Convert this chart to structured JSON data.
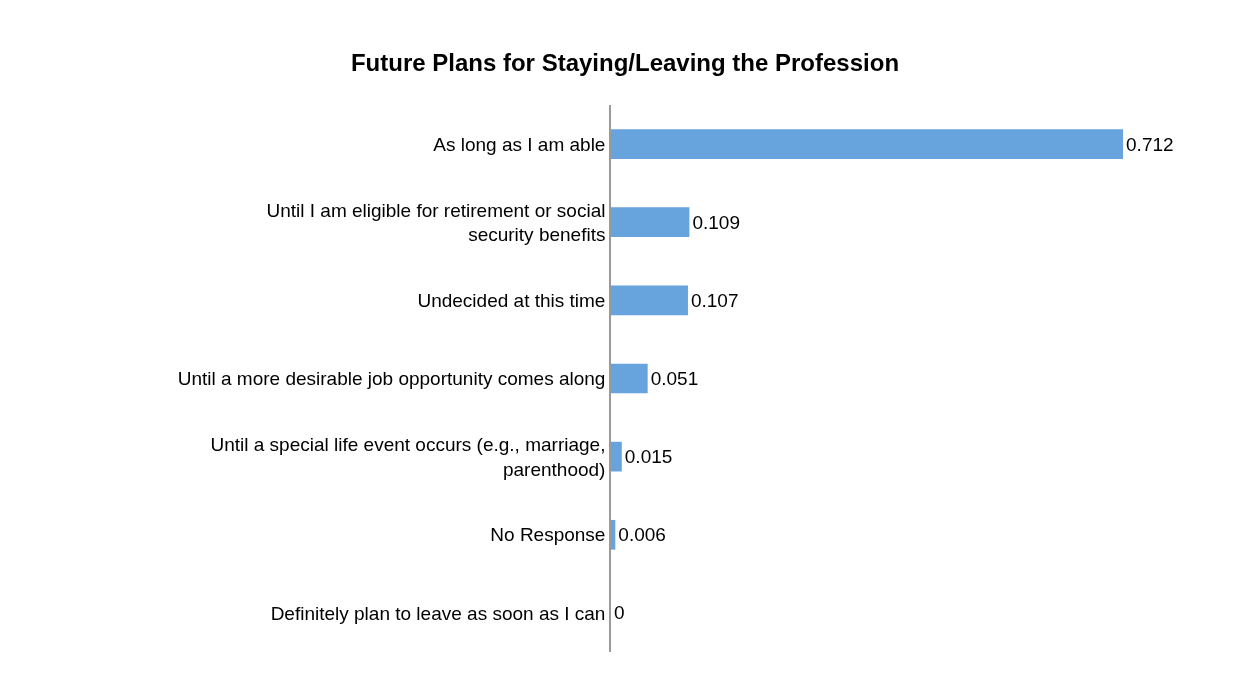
{
  "chart_data": {
    "type": "bar",
    "orientation": "horizontal",
    "title": "Future Plans for Staying/Leaving the Profession",
    "categories": [
      "As long as I am able",
      "Until I am eligible for retirement or social security benefits",
      "Undecided at this time",
      "Until a more desirable job opportunity comes along",
      "Until a special life event occurs (e.g., marriage, parenthood)",
      "No Response",
      "Definitely plan to leave as soon as I can"
    ],
    "values": [
      0.712,
      0.109,
      0.107,
      0.051,
      0.015,
      0.006,
      0
    ],
    "color": "#67a3dd",
    "data_labels": true
  }
}
